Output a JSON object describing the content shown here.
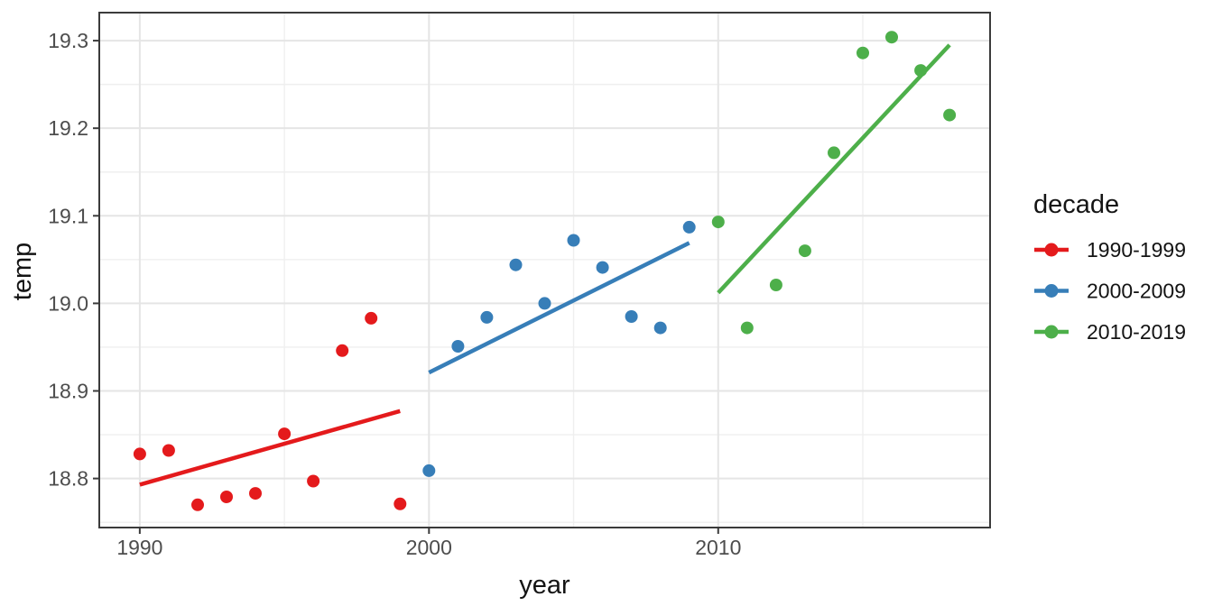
{
  "chart_data": {
    "type": "scatter",
    "title": "",
    "xlabel": "year",
    "ylabel": "temp",
    "xlim": [
      1988.6,
      2019.4
    ],
    "ylim": [
      18.744,
      19.332
    ],
    "x_ticks": [
      1990,
      2000,
      2010
    ],
    "x_minor_ticks": [
      1995,
      2005,
      2015
    ],
    "y_ticks": [
      18.8,
      18.9,
      19.0,
      19.1,
      19.2,
      19.3
    ],
    "y_minor_ticks": [
      18.75,
      18.85,
      18.95,
      19.05,
      19.15,
      19.25
    ],
    "grid": true,
    "panel_border_color": "#3b3b3b",
    "major_grid_color": "#e5e5e5",
    "minor_grid_color": "#efefef",
    "legend": {
      "title": "decade",
      "position": "right"
    },
    "series": [
      {
        "name": "1990-1999",
        "color": "#E41A1C",
        "points": [
          [
            1990,
            18.828
          ],
          [
            1991,
            18.832
          ],
          [
            1992,
            18.77
          ],
          [
            1993,
            18.779
          ],
          [
            1994,
            18.783
          ],
          [
            1995,
            18.851
          ],
          [
            1996,
            18.797
          ],
          [
            1997,
            18.946
          ],
          [
            1998,
            18.983
          ],
          [
            1999,
            18.771
          ]
        ],
        "trend": [
          [
            1990,
            18.793
          ],
          [
            1999,
            18.877
          ]
        ]
      },
      {
        "name": "2000-2009",
        "color": "#377EB8",
        "points": [
          [
            2000,
            18.809
          ],
          [
            2001,
            18.951
          ],
          [
            2002,
            18.984
          ],
          [
            2003,
            19.044
          ],
          [
            2004,
            19.0
          ],
          [
            2005,
            19.072
          ],
          [
            2006,
            19.041
          ],
          [
            2007,
            18.985
          ],
          [
            2008,
            18.972
          ],
          [
            2009,
            19.087
          ]
        ],
        "trend": [
          [
            2000,
            18.921
          ],
          [
            2009,
            19.069
          ]
        ]
      },
      {
        "name": "2010-2019",
        "color": "#4DAF4A",
        "points": [
          [
            2010,
            19.093
          ],
          [
            2011,
            18.972
          ],
          [
            2012,
            19.021
          ],
          [
            2013,
            19.06
          ],
          [
            2014,
            19.172
          ],
          [
            2015,
            19.286
          ],
          [
            2016,
            19.304
          ],
          [
            2017,
            19.266
          ],
          [
            2018,
            19.215
          ]
        ],
        "trend": [
          [
            2010,
            19.012
          ],
          [
            2018,
            19.295
          ]
        ]
      }
    ]
  }
}
